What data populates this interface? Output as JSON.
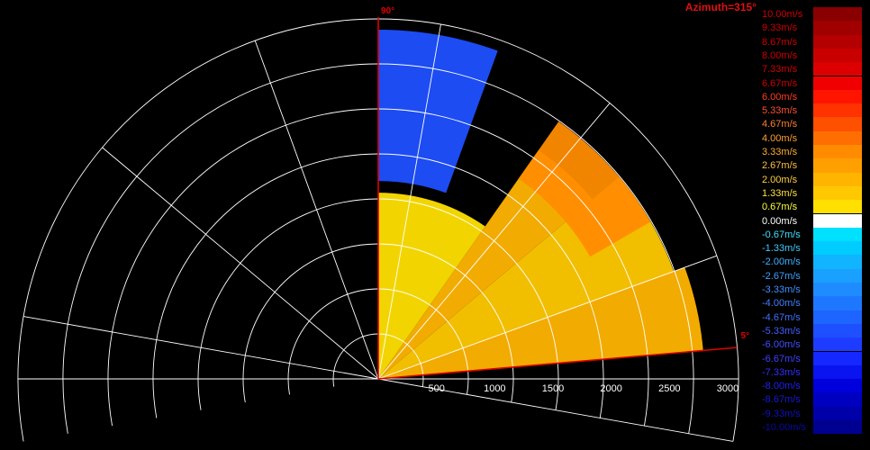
{
  "chart_data": {
    "type": "heatmap",
    "title": "Azimuth=315°",
    "elevation_start_label": "90°",
    "elevation_end_label": "5°",
    "elevation_range_deg": [
      5,
      90
    ],
    "range_ticks": [
      "500",
      "1000",
      "1500",
      "2000",
      "2500",
      "3000"
    ],
    "range_max": 3000,
    "grid": true,
    "colorbar": {
      "labels": [
        "10.00m/s",
        "9.33m/s",
        "8.67m/s",
        "8.00m/s",
        "7.33m/s",
        "6.67m/s",
        "6.00m/s",
        "5.33m/s",
        "4.67m/s",
        "4.00m/s",
        "3.33m/s",
        "2.67m/s",
        "2.00m/s",
        "1.33m/s",
        "0.67m/s",
        "0.00m/s",
        "-0.67m/s",
        "-1.33m/s",
        "-2.00m/s",
        "-2.67m/s",
        "-3.33m/s",
        "-4.00m/s",
        "-4.67m/s",
        "-5.33m/s",
        "-6.00m/s",
        "-6.67m/s",
        "-7.33m/s",
        "-8.00m/s",
        "-8.67m/s",
        "-9.33m/s",
        "-10.00m/s"
      ],
      "colors": [
        "#8a0000",
        "#a00000",
        "#b40000",
        "#c80000",
        "#dc0000",
        "#f00000",
        "#ff1400",
        "#ff3200",
        "#ff5000",
        "#ff6e00",
        "#ff8c00",
        "#ffa000",
        "#ffb400",
        "#ffc800",
        "#ffe000",
        "#ffffff",
        "#00e0ff",
        "#00ccff",
        "#10b4ff",
        "#1aa0ff",
        "#1e8cff",
        "#1e78ff",
        "#1e64ff",
        "#1e50ff",
        "#1e3cff",
        "#1428ff",
        "#0a14f0",
        "#0000dc",
        "#0000c0",
        "#0000a8",
        "#000090"
      ],
      "text_colors": [
        "#d00000",
        "#d00000",
        "#d00000",
        "#d00000",
        "#d00000",
        "#d00000",
        "#ff4020",
        "#ff5030",
        "#ff8030",
        "#ffa030",
        "#ffb030",
        "#ffc040",
        "#ffd040",
        "#ffe040",
        "#ffff40",
        "#ffffff",
        "#40e0ff",
        "#40c8ff",
        "#40b0ff",
        "#40a0ff",
        "#4090ff",
        "#4080ff",
        "#4070ff",
        "#4060ff",
        "#4050ff",
        "#4040ff",
        "#3030ff",
        "#2020f0",
        "#1818d8",
        "#1010c0",
        "#0808a8"
      ]
    },
    "velocity_field": [
      {
        "elev_from": 5,
        "elev_to": 20,
        "range_from": 0,
        "range_to": 2800,
        "value": 2.0
      },
      {
        "elev_from": 20,
        "elev_to": 40,
        "range_from": 0,
        "range_to": 2700,
        "value": 1.33
      },
      {
        "elev_from": 40,
        "elev_to": 55,
        "range_from": 0,
        "range_to": 2400,
        "value": 2.0
      },
      {
        "elev_from": 55,
        "elev_to": 90,
        "range_from": 0,
        "range_to": 1600,
        "value": 0.67
      },
      {
        "elev_from": 30,
        "elev_to": 55,
        "range_from": 2100,
        "range_to": 2700,
        "value": 3.33
      },
      {
        "elev_from": 70,
        "elev_to": 90,
        "range_from": 1700,
        "range_to": 3000,
        "value": -5.33
      }
    ]
  }
}
